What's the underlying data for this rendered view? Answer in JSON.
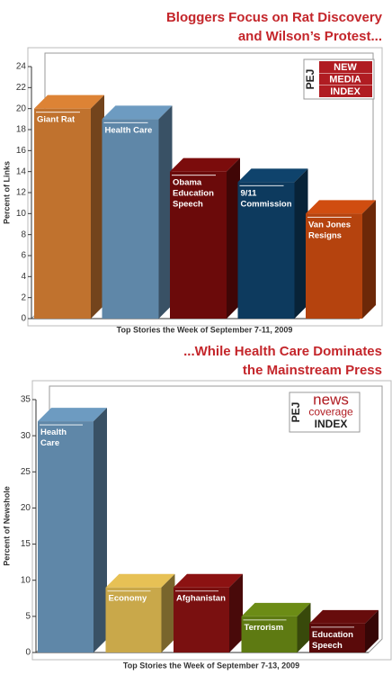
{
  "chart_data": [
    {
      "type": "bar",
      "title": [
        "Bloggers Focus on Rat Discovery",
        "and Wilson’s Protest..."
      ],
      "logo": {
        "side": "PEJ",
        "lines": [
          "NEW",
          "MEDIA",
          "INDEX"
        ]
      },
      "y_label": "Percent of Links",
      "x_label": "Top Stories the Week of September 7-11, 2009",
      "categories": [
        "Giant Rat",
        "Health Care",
        "Obama\nEducation\nSpeech",
        "9/11\nCommission",
        "Van Jones\nResigns"
      ],
      "values": [
        20,
        19,
        14,
        13,
        10
      ],
      "colors": [
        "#c0722e",
        "#5f87a8",
        "#6b0a0a",
        "#0d3a5e",
        "#b5430e"
      ],
      "ylim": [
        0,
        24
      ],
      "yticks": [
        0,
        2,
        4,
        6,
        8,
        10,
        12,
        14,
        16,
        18,
        20,
        22,
        24
      ]
    },
    {
      "type": "bar",
      "title": [
        "...While Health Care Dominates",
        "the Mainstream Press"
      ],
      "logo": {
        "side": "PEJ",
        "lines": [
          "news",
          "coverage",
          "INDEX"
        ]
      },
      "y_label": "Percent of Newshole",
      "x_label": "Top Stories the Week of September 7-13, 2009",
      "categories": [
        "Health\nCare",
        "Economy",
        "Afghanistan",
        "Terrorism",
        "Education\nSpeech"
      ],
      "values": [
        32,
        9,
        9,
        5,
        4
      ],
      "colors": [
        "#5f87a8",
        "#c9a84a",
        "#7a1010",
        "#5e7a12",
        "#5a0a0a"
      ],
      "ylim": [
        0,
        35
      ],
      "yticks": [
        0,
        5,
        10,
        15,
        20,
        25,
        30,
        35
      ]
    }
  ]
}
